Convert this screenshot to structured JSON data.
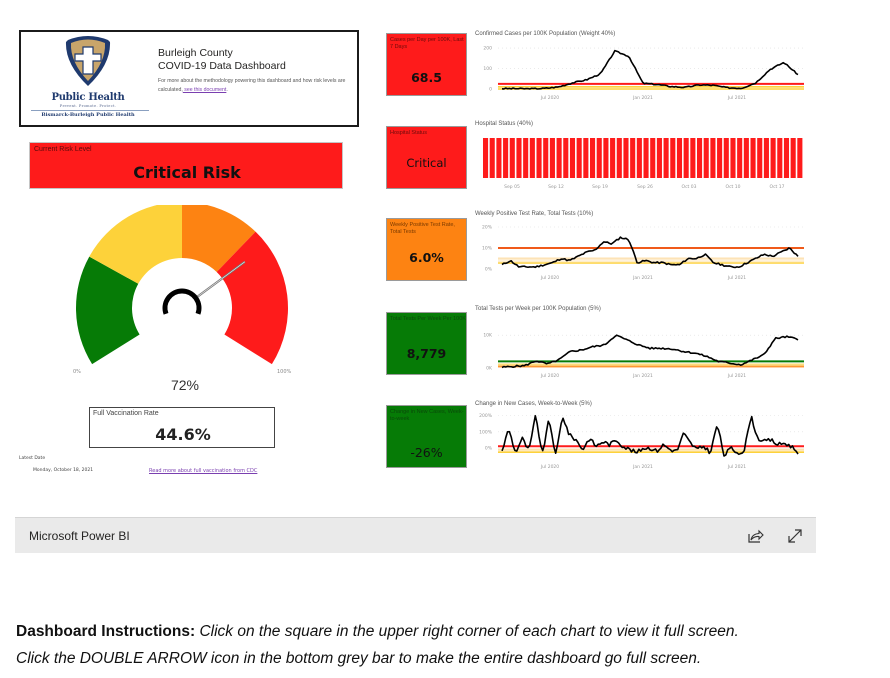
{
  "header": {
    "logo": {
      "name": "Public Health",
      "tagline": "Prevent. Promote. Protect.",
      "org": "Bismarck-Burleigh Public Health",
      "colors": {
        "shield_outer": "#1f3a6e",
        "shield_inner": "#c8a56a",
        "cross": "#ffffff"
      }
    },
    "title_line1": "Burleigh County",
    "title_line2": "COVID-19 Data Dashboard",
    "desc_text": "For more about the methodology powering this dashboard and how risk levels are calculated,",
    "desc_link": " see this document",
    "desc_end": "."
  },
  "risk": {
    "label": "Current Risk Level",
    "value": "Critical Risk",
    "color": "#fe1b1b"
  },
  "gauge": {
    "min_label": "0%",
    "max_label": "100%",
    "value_label": "72%",
    "value": 72,
    "segments": [
      {
        "name": "low",
        "from": 0,
        "to": 25,
        "color": "#067b06"
      },
      {
        "name": "moderate",
        "from": 25,
        "to": 50,
        "color": "#fdd23a"
      },
      {
        "name": "high",
        "from": 50,
        "to": 68,
        "color": "#fd8312"
      },
      {
        "name": "critical",
        "from": 68,
        "to": 100,
        "color": "#fe1b1b"
      }
    ]
  },
  "vaccination": {
    "label": "Full Vaccination Rate",
    "value": "44.6%"
  },
  "latest": {
    "label": "Latest Date",
    "date": "Monday, October 18, 2021",
    "cdc_link": "Read more about full vaccination from CDC"
  },
  "kpis": [
    {
      "label": "Cases per Day per 100K, Last 7 Days",
      "value": "68.5",
      "bg": "#fe1b1b",
      "label_color": "#6b0c0c"
    },
    {
      "label": "Hospital Status",
      "value": "Critical",
      "bg": "#fe1b1b",
      "label_color": "#6b0c0c"
    },
    {
      "label": "Weekly Positive Test Rate, Total Tests",
      "value": "6.0%",
      "bg": "#fd8312",
      "label_color": "#7a3a00"
    },
    {
      "label": "Total Tests Per Week Per 100K",
      "value": "8,779",
      "bg": "#067b06",
      "label_color": "#0a4a0a"
    },
    {
      "label": "Change in New Cases, Week-to-week",
      "value": "-26%",
      "bg": "#067b06",
      "label_color": "#0a4a0a"
    }
  ],
  "chart_data": [
    {
      "type": "line",
      "title": "Confirmed Cases per 100K Population (Weight 40%)",
      "x_ticks": [
        "Jul 2020",
        "Jan 2021",
        "Jul 2021"
      ],
      "y_ticks": [
        "0",
        "100",
        "200"
      ],
      "ylim": [
        0,
        210
      ],
      "thresholds": [
        {
          "value": 25,
          "color": "#fe1b1b"
        },
        {
          "value": 10,
          "color": "#fdd23a"
        },
        {
          "value": 1,
          "color": "#fdd23a"
        }
      ],
      "series": [
        {
          "name": "Cases per 100K",
          "x": [
            "Mar 2020",
            "Apr 2020",
            "May 2020",
            "Jun 2020",
            "Jul 2020",
            "Aug 2020",
            "Sep 2020",
            "Oct 2020",
            "Nov 2020",
            "Nov 2020b",
            "Dec 2020",
            "Jan 2021",
            "Feb 2021",
            "Mar 2021",
            "Apr 2021",
            "May 2021",
            "Jun 2021",
            "Jul 2021",
            "Aug 2021",
            "Sep 2021",
            "Oct 2021",
            "Oct 2021b"
          ],
          "values": [
            2,
            2,
            1,
            3,
            10,
            30,
            45,
            75,
            185,
            160,
            28,
            22,
            12,
            8,
            20,
            18,
            6,
            4,
            30,
            95,
            130,
            70
          ]
        }
      ]
    },
    {
      "type": "bar",
      "title": "Hospital Status (40%)",
      "x_ticks": [
        "Sep 05",
        "Sep 12",
        "Sep 19",
        "Sep 26",
        "Oct 03",
        "Oct 10",
        "Oct 17"
      ],
      "bar_count": 48,
      "bar_color": "#fe1b1b",
      "values_note": "all days Critical"
    },
    {
      "type": "line",
      "title": "Weekly Positive Test Rate, Total Tests (10%)",
      "x_ticks": [
        "Jul 2020",
        "Jan 2021",
        "Jul 2021"
      ],
      "y_ticks": [
        "0%",
        "10%",
        "20%"
      ],
      "ylim": [
        0,
        20
      ],
      "thresholds": [
        {
          "value": 10,
          "color": "#f05a1a"
        },
        {
          "value": 5,
          "color": "#fde0b0"
        },
        {
          "value": 3,
          "color": "#fdd23a"
        }
      ],
      "series": [
        {
          "name": "Positive rate %",
          "values": [
            2,
            4,
            1,
            1,
            1,
            2,
            3,
            5,
            4,
            6,
            8,
            9,
            13,
            12,
            15,
            14,
            3,
            4,
            3,
            3,
            2,
            2,
            5,
            5,
            7,
            3,
            2,
            1,
            1,
            3,
            5,
            7,
            6,
            8,
            10,
            6
          ]
        }
      ]
    },
    {
      "type": "line",
      "title": "Total Tests per Week per 100K Population (5%)",
      "x_ticks": [
        "Jul 2020",
        "Jan 2021",
        "Jul 2021"
      ],
      "y_ticks": [
        "0K",
        "10K"
      ],
      "ylim": [
        0,
        14000
      ],
      "thresholds": [
        {
          "value": 2000,
          "color": "#067b06"
        },
        {
          "value": 1000,
          "color": "#fdd23a"
        },
        {
          "value": 500,
          "color": "#fd8312"
        }
      ],
      "series": [
        {
          "name": "Tests per 100K",
          "values": [
            200,
            500,
            700,
            2200,
            1200,
            2500,
            5000,
            5500,
            6500,
            7000,
            10000,
            8500,
            7000,
            6000,
            6000,
            5800,
            5000,
            4500,
            3500,
            2000,
            1500,
            1000,
            2500,
            4000,
            9000,
            9500,
            8779
          ]
        }
      ]
    },
    {
      "type": "line",
      "title": "Change in New Cases, Week-to-Week (5%)",
      "x_ticks": [
        "Jul 2020",
        "Jan 2021",
        "Jul 2021"
      ],
      "y_ticks": [
        "0%",
        "100%",
        "200%"
      ],
      "ylim": [
        -50,
        210
      ],
      "thresholds": [
        {
          "value": 10,
          "color": "#fe1b1b"
        },
        {
          "value": -10,
          "color": "#fde0b0"
        },
        {
          "value": -25,
          "color": "#fdd23a"
        }
      ],
      "series": [
        {
          "name": "Week-to-week change %",
          "values": [
            -20,
            120,
            -30,
            60,
            -20,
            200,
            -40,
            180,
            -50,
            200,
            80,
            50,
            -10,
            60,
            10,
            40,
            20,
            50,
            10,
            -10,
            -30,
            0,
            0,
            -20,
            20,
            -10,
            -20,
            90,
            30,
            -10,
            10,
            -30,
            150,
            -50,
            0,
            -30,
            -20,
            200,
            60,
            40,
            50,
            20,
            30,
            10,
            -26
          ]
        }
      ]
    }
  ],
  "powerbi": {
    "label": "Microsoft Power BI",
    "share_icon": "share-icon",
    "fullscreen_icon": "expand-icon"
  },
  "instructions": {
    "bold": "Dashboard Instructions:",
    "line1": " Click on the square in the upper right corner of each chart to view it full screen.",
    "line2": "Click the DOUBLE ARROW icon in the bottom grey bar to make the entire dashboard go full screen."
  }
}
